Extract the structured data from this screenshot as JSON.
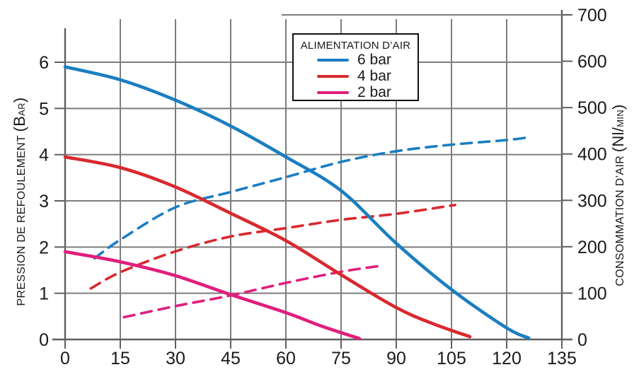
{
  "page": {
    "background": "#ffffff"
  },
  "legend": {
    "title": "ALIMENTATION D’AIR",
    "items": [
      {
        "label": "6 bar",
        "color": "#1b7ec2"
      },
      {
        "label": "4 bar",
        "color": "#d8292f"
      },
      {
        "label": "2 bar",
        "color": "#df1f7d"
      }
    ]
  },
  "chart_data": {
    "type": "line",
    "title": "",
    "grid": true,
    "legend_title": "ALIMENTATION D’AIR",
    "x_axis": {
      "label": "",
      "range": [
        0,
        135
      ],
      "ticks": [
        0,
        15,
        30,
        45,
        60,
        75,
        90,
        105,
        120,
        135
      ]
    },
    "left_axis": {
      "label": "PRESSION DE REFOULEMENT (Bar)",
      "label_main": "PRESSION DE REFOULEMENT ",
      "label_big_open": "(B",
      "label_small": "AR",
      "label_big_close": ")",
      "unit": "bar",
      "range": [
        0,
        6
      ],
      "ticks": [
        0,
        1,
        2,
        3,
        4,
        5,
        6
      ]
    },
    "right_axis": {
      "label": "CONSOMMATION D’AIR (Nl/min)",
      "label_main": "CONSOMMATION D’AIR ",
      "label_big_open": "(Nl/",
      "label_small": "MIN",
      "label_big_close": ")",
      "unit": "Nl/min",
      "range": [
        0,
        700
      ],
      "ticks": [
        0,
        100,
        200,
        300,
        400,
        500,
        600,
        700
      ]
    },
    "colors": {
      "grid": "#7d7d7d",
      "axis": "#5f5f5f",
      "text": "#1a1a1a",
      "blue": "#1b7ec2",
      "red": "#d8292f",
      "magenta": "#df1f7d"
    },
    "series": [
      {
        "name": "pression-6bar",
        "legend": "6 bar",
        "axis": "left",
        "style": "solid",
        "color": "#1b7ec2",
        "points": [
          [
            0,
            5.9
          ],
          [
            15,
            5.62
          ],
          [
            30,
            5.18
          ],
          [
            45,
            4.62
          ],
          [
            60,
            3.95
          ],
          [
            75,
            3.22
          ],
          [
            90,
            2.08
          ],
          [
            105,
            1.08
          ],
          [
            120,
            0.25
          ],
          [
            126,
            0.03
          ]
        ]
      },
      {
        "name": "pression-4bar",
        "legend": "4 bar",
        "axis": "left",
        "style": "solid",
        "color": "#d8292f",
        "points": [
          [
            0,
            3.95
          ],
          [
            15,
            3.72
          ],
          [
            30,
            3.3
          ],
          [
            45,
            2.73
          ],
          [
            60,
            2.14
          ],
          [
            75,
            1.4
          ],
          [
            90,
            0.69
          ],
          [
            100,
            0.34
          ],
          [
            110,
            0.06
          ]
        ]
      },
      {
        "name": "pression-2bar",
        "legend": "2 bar",
        "axis": "left",
        "style": "solid",
        "color": "#df1f7d",
        "points": [
          [
            0,
            1.9
          ],
          [
            15,
            1.68
          ],
          [
            30,
            1.38
          ],
          [
            45,
            0.97
          ],
          [
            60,
            0.58
          ],
          [
            70,
            0.28
          ],
          [
            80,
            0.02
          ]
        ]
      },
      {
        "name": "consommation-6bar",
        "legend": "6 bar",
        "axis": "right",
        "style": "dashed",
        "color": "#1b7ec2",
        "points": [
          [
            8,
            175
          ],
          [
            15,
            215
          ],
          [
            30,
            285
          ],
          [
            45,
            318
          ],
          [
            60,
            350
          ],
          [
            75,
            383
          ],
          [
            90,
            406
          ],
          [
            105,
            420
          ],
          [
            120,
            430
          ],
          [
            126,
            436
          ]
        ]
      },
      {
        "name": "consommation-4bar",
        "legend": "4 bar",
        "axis": "right",
        "style": "dashed",
        "color": "#d8292f",
        "points": [
          [
            7,
            110
          ],
          [
            15,
            145
          ],
          [
            30,
            190
          ],
          [
            45,
            222
          ],
          [
            60,
            240
          ],
          [
            75,
            258
          ],
          [
            90,
            271
          ],
          [
            106,
            290
          ]
        ]
      },
      {
        "name": "consommation-2bar",
        "legend": "2 bar",
        "axis": "right",
        "style": "dashed",
        "color": "#df1f7d",
        "points": [
          [
            16,
            48
          ],
          [
            30,
            72
          ],
          [
            45,
            95
          ],
          [
            60,
            122
          ],
          [
            75,
            146
          ],
          [
            85,
            158
          ]
        ]
      }
    ]
  }
}
